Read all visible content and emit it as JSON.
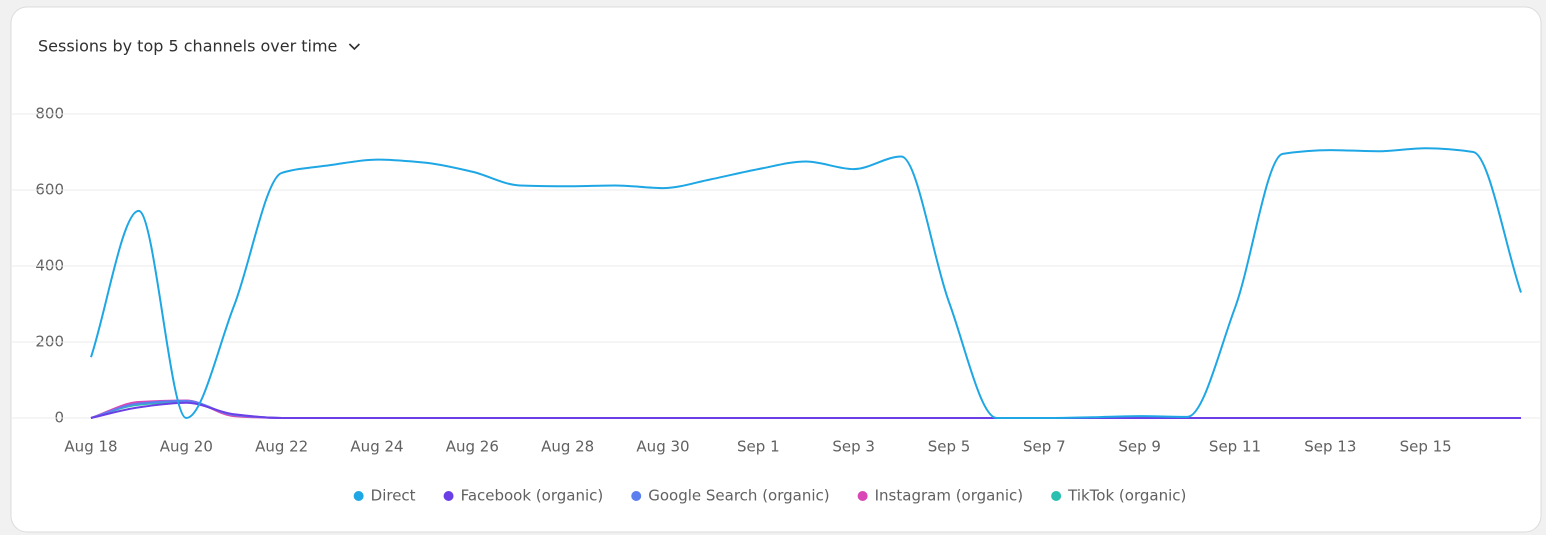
{
  "chart_data": {
    "type": "line",
    "title": "Sessions by top 5 channels over time",
    "categories": [
      "Aug 18",
      null,
      "Aug 20",
      null,
      "Aug 22",
      null,
      "Aug 24",
      null,
      "Aug 26",
      null,
      "Aug 28",
      null,
      "Aug 30",
      null,
      "Sep 1",
      null,
      "Sep 3",
      null,
      "Sep 5",
      null,
      "Sep 7",
      null,
      "Sep 9",
      null,
      "Sep 11",
      null,
      "Sep 13",
      null,
      "Sep 15",
      null,
      null
    ],
    "series": [
      {
        "name": "Direct",
        "color": "#1ea7e4",
        "values": [
          160,
          545,
          0,
          295,
          645,
          665,
          680,
          672,
          648,
          612,
          610,
          612,
          605,
          628,
          655,
          675,
          655,
          688,
          305,
          0,
          0,
          2,
          5,
          3,
          290,
          695,
          705,
          702,
          710,
          700,
          330
        ]
      },
      {
        "name": "Facebook (organic)",
        "color": "#6b3fe6",
        "values": [
          0,
          28,
          40,
          10,
          0,
          0,
          0,
          0,
          0,
          0,
          0,
          0,
          0,
          0,
          0,
          0,
          0,
          0,
          0,
          0,
          0,
          0,
          0,
          0,
          0,
          0,
          0,
          0,
          0,
          0,
          0
        ]
      },
      {
        "name": "Google Search (organic)",
        "color": "#5c7ff0",
        "values": [
          0,
          38,
          45,
          8,
          0,
          0,
          0,
          0,
          0,
          0,
          0,
          0,
          0,
          0,
          0,
          0,
          0,
          0,
          0,
          0,
          0,
          0,
          0,
          0,
          0,
          0,
          0,
          0,
          0,
          0,
          0
        ]
      },
      {
        "name": "Instagram (organic)",
        "color": "#d946b6",
        "values": [
          0,
          42,
          46,
          5,
          0,
          0,
          0,
          0,
          0,
          0,
          0,
          0,
          0,
          0,
          0,
          0,
          0,
          0,
          0,
          0,
          0,
          0,
          0,
          0,
          0,
          0,
          0,
          0,
          0,
          0,
          0
        ]
      },
      {
        "name": "TikTok (organic)",
        "color": "#2bbfb0",
        "values": [
          0,
          35,
          42,
          8,
          0,
          0,
          0,
          0,
          0,
          0,
          0,
          0,
          0,
          0,
          0,
          0,
          0,
          0,
          0,
          0,
          0,
          0,
          0,
          0,
          0,
          0,
          0,
          0,
          0,
          0,
          0
        ]
      }
    ],
    "ylim": [
      0,
      800
    ],
    "yticks": [
      0,
      200,
      400,
      600,
      800
    ],
    "grid": true,
    "legend": "bottom"
  }
}
